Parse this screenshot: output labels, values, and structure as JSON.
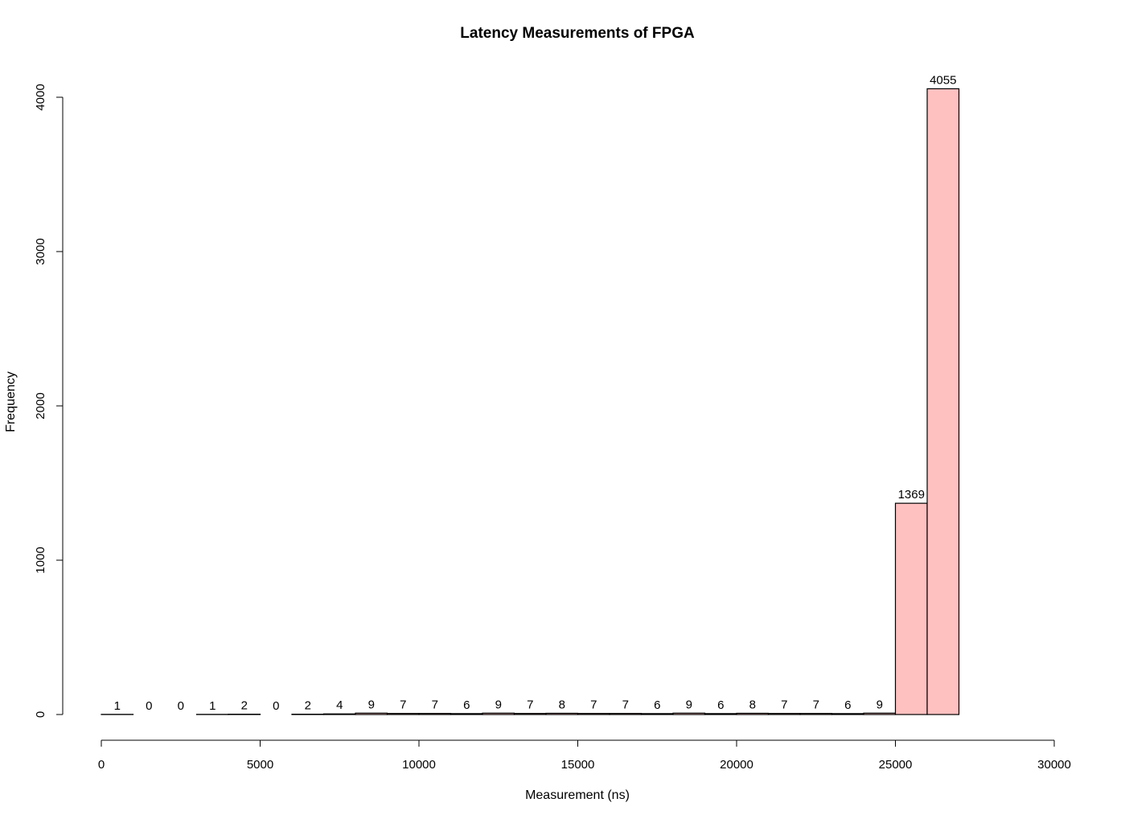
{
  "chart_data": {
    "type": "bar",
    "title": "Latency Measurements of FPGA",
    "xlabel": "Measurement (ns)",
    "ylabel": "Frequency",
    "bin_width": 1000,
    "bins_start": [
      0,
      1000,
      2000,
      3000,
      4000,
      5000,
      6000,
      7000,
      8000,
      9000,
      10000,
      11000,
      12000,
      13000,
      14000,
      15000,
      16000,
      17000,
      18000,
      19000,
      20000,
      21000,
      22000,
      23000,
      24000,
      25000,
      26000
    ],
    "values": [
      1,
      0,
      0,
      1,
      2,
      0,
      2,
      4,
      9,
      7,
      7,
      6,
      9,
      7,
      8,
      7,
      7,
      6,
      9,
      6,
      8,
      7,
      7,
      6,
      9,
      1369,
      4055
    ],
    "xlim": [
      0,
      30000
    ],
    "ylim": [
      0,
      4000
    ],
    "x_ticks": [
      "0",
      "5000",
      "10000",
      "15000",
      "20000",
      "25000",
      "30000"
    ],
    "y_ticks": [
      "0",
      "1000",
      "2000",
      "3000",
      "4000"
    ],
    "bar_color": "#ffc0c0",
    "bar_border_color": "#000000",
    "grid": false
  }
}
